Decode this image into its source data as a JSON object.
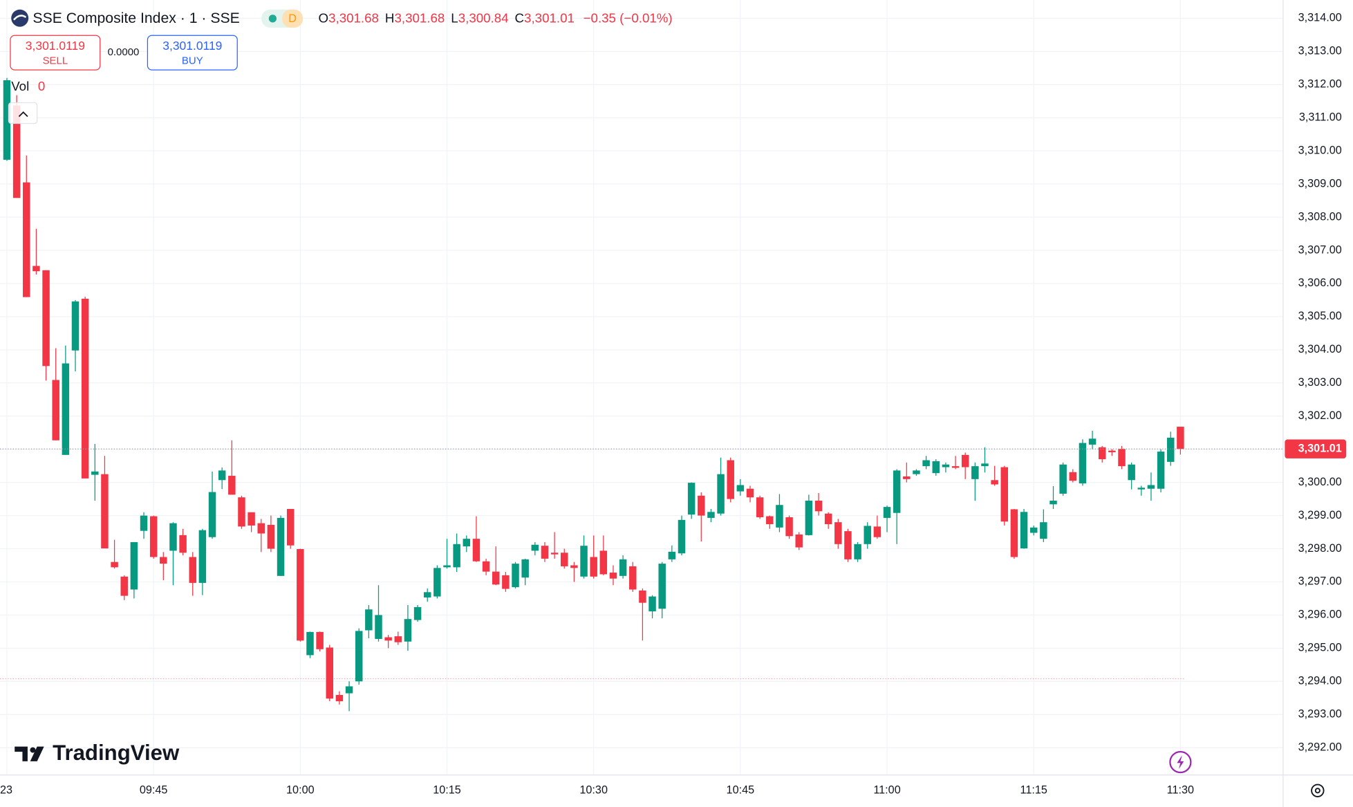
{
  "chart_data": {
    "type": "candlestick",
    "title": "SSE Composite Index · 1 · SSE",
    "interval_badge": "D",
    "legend": {
      "items": [
        {
          "key": "O",
          "value": "3,301.68"
        },
        {
          "key": "H",
          "value": "3,301.68"
        },
        {
          "key": "L",
          "value": "3,300.84"
        },
        {
          "key": "C",
          "value": "3,301.01"
        }
      ],
      "change": "−0.35 (−0.01%)"
    },
    "trade": {
      "sell_price": "3,301.0119",
      "sell": "SELL",
      "spread": "0.0000",
      "buy_price": "3,301.0119",
      "buy": "BUY"
    },
    "volume": {
      "label": "Vol",
      "value": "0"
    },
    "brand": "TradingView",
    "up_color": "#089981",
    "down_color": "#f23645",
    "grid": true,
    "categories": [
      "23",
      null,
      null,
      null,
      null,
      null,
      null,
      null,
      null,
      null,
      null,
      null,
      null,
      null,
      null,
      "09:45",
      null,
      null,
      null,
      null,
      null,
      null,
      null,
      null,
      null,
      null,
      null,
      null,
      null,
      null,
      "10:00",
      null,
      null,
      null,
      null,
      null,
      null,
      null,
      null,
      null,
      null,
      null,
      null,
      null,
      null,
      "10:15",
      null,
      null,
      null,
      null,
      null,
      null,
      null,
      null,
      null,
      null,
      null,
      null,
      null,
      null,
      "10:30",
      null,
      null,
      null,
      null,
      null,
      null,
      null,
      null,
      null,
      null,
      null,
      null,
      null,
      null,
      "10:45",
      null,
      null,
      null,
      null,
      null,
      null,
      null,
      null,
      null,
      null,
      null,
      null,
      null,
      null,
      "11:00",
      null,
      null,
      null,
      null,
      null,
      null,
      null,
      null,
      null,
      null,
      null,
      null,
      null,
      null,
      "11:15",
      null,
      null,
      null,
      null,
      null,
      null,
      null,
      null,
      null,
      null,
      null,
      null,
      null,
      null,
      "11:30"
    ],
    "open": [
      3309.73,
      3311.37,
      3309.05,
      3306.53,
      3306.4,
      3303.09,
      3300.83,
      3303.98,
      3305.54,
      3300.23,
      3300.25,
      3297.6,
      3297.16,
      3296.77,
      3298.54,
      3298.98,
      3297.75,
      3297.94,
      3298.41,
      3297.75,
      3296.97,
      3298.35,
      3300.07,
      3300.2,
      3299.55,
      3299.1,
      3298.77,
      3298.72,
      3297.18,
      3299.2,
      3297.99,
      3294.79,
      3295.49,
      3295.02,
      3293.59,
      3293.64,
      3294.0,
      3295.54,
      3295.28,
      3295.33,
      3295.36,
      3295.2,
      3295.85,
      3296.53,
      3296.56,
      3297.44,
      3297.44,
      3298.07,
      3298.3,
      3297.62,
      3297.31,
      3297.2,
      3296.84,
      3297.13,
      3297.94,
      3298.09,
      3297.88,
      3297.88,
      3297.5,
      3297.16,
      3297.75,
      3297.94,
      3297.28,
      3297.18,
      3297.47,
      3296.74,
      3296.11,
      3296.19,
      3297.68,
      3297.86,
      3299.03,
      3299.6,
      3298.93,
      3299.06,
      3300.67,
      3299.73,
      3299.81,
      3299.55,
      3298.98,
      3298.64,
      3298.95,
      3298.43,
      3298.41,
      3299.45,
      3299.06,
      3298.8,
      3298.53,
      3297.68,
      3298.14,
      3298.67,
      3298.93,
      3299.08,
      3300.18,
      3300.25,
      3300.49,
      3300.28,
      3300.46,
      3300.49,
      3300.83,
      3300.1,
      3300.49,
      3300.07,
      3300.46,
      3299.19,
      3298.01,
      3298.48,
      3298.3,
      3299.34,
      3299.66,
      3300.31,
      3299.97,
      3301.14,
      3301.06,
      3300.96,
      3301.01,
      3300.07,
      3299.79,
      3299.81,
      3299.81,
      3300.62,
      3301.68
    ],
    "high": [
      3312.2,
      3311.68,
      3309.86,
      3307.65,
      3306.4,
      3304.05,
      3304.13,
      3305.5,
      3305.6,
      3301.16,
      3300.8,
      3298.27,
      3297.2,
      3298.2,
      3299.1,
      3299.0,
      3297.9,
      3298.8,
      3298.6,
      3297.9,
      3298.6,
      3300.33,
      3300.45,
      3301.27,
      3299.6,
      3299.1,
      3298.9,
      3299.0,
      3299.0,
      3299.2,
      3298.0,
      3295.5,
      3295.5,
      3295.1,
      3293.7,
      3294.0,
      3295.6,
      3296.3,
      3296.9,
      3295.4,
      3295.5,
      3296.3,
      3296.3,
      3296.8,
      3297.5,
      3298.3,
      3298.46,
      3298.4,
      3298.98,
      3297.7,
      3298.07,
      3297.3,
      3297.6,
      3297.7,
      3298.2,
      3298.2,
      3298.5,
      3298.0,
      3297.6,
      3298.4,
      3298.4,
      3298.4,
      3297.5,
      3297.8,
      3297.6,
      3296.8,
      3296.6,
      3297.6,
      3298.1,
      3299.0,
      3300.0,
      3299.7,
      3299.2,
      3300.75,
      3300.75,
      3300.1,
      3299.9,
      3299.6,
      3299.0,
      3299.65,
      3299.0,
      3298.5,
      3299.63,
      3299.68,
      3299.1,
      3298.9,
      3298.6,
      3298.2,
      3298.8,
      3299.0,
      3299.3,
      3300.4,
      3300.6,
      3300.4,
      3300.8,
      3300.7,
      3300.6,
      3300.8,
      3300.9,
      3300.6,
      3301.06,
      3300.5,
      3300.5,
      3299.2,
      3299.2,
      3298.7,
      3299.19,
      3299.89,
      3300.6,
      3300.4,
      3301.3,
      3301.56,
      3301.1,
      3301.0,
      3301.1,
      3300.6,
      3299.9,
      3300.3,
      3301.0,
      3301.53,
      3301.68
    ],
    "low": [
      3309.7,
      3308.58,
      3305.59,
      3306.27,
      3303.07,
      3301.27,
      3300.83,
      3303.35,
      3300.12,
      3299.45,
      3298.01,
      3297.4,
      3296.45,
      3296.5,
      3298.3,
      3297.7,
      3297.05,
      3296.9,
      3297.8,
      3296.58,
      3296.6,
      3298.3,
      3299.8,
      3299.63,
      3298.6,
      3298.5,
      3297.9,
      3297.9,
      3297.18,
      3298.0,
      3295.2,
      3294.7,
      3294.9,
      3293.4,
      3293.3,
      3293.1,
      3293.9,
      3295.3,
      3295.2,
      3295.0,
      3295.1,
      3294.92,
      3295.8,
      3296.4,
      3296.5,
      3297.4,
      3297.3,
      3297.9,
      3297.6,
      3297.2,
      3296.9,
      3296.7,
      3296.8,
      3296.9,
      3297.8,
      3297.6,
      3297.7,
      3297.4,
      3297.0,
      3297.1,
      3297.1,
      3297.2,
      3296.9,
      3297.1,
      3296.7,
      3295.23,
      3295.9,
      3295.9,
      3297.6,
      3297.8,
      3298.9,
      3298.22,
      3298.8,
      3299.0,
      3299.4,
      3299.6,
      3299.4,
      3298.9,
      3298.6,
      3298.5,
      3298.3,
      3297.96,
      3298.4,
      3299.0,
      3298.6,
      3298.0,
      3297.6,
      3297.6,
      3298.0,
      3298.3,
      3298.5,
      3298.14,
      3300.0,
      3300.2,
      3300.4,
      3300.2,
      3300.3,
      3300.4,
      3300.1,
      3299.45,
      3300.3,
      3299.9,
      3298.7,
      3297.7,
      3298.0,
      3298.4,
      3298.2,
      3299.2,
      3299.6,
      3300.0,
      3299.9,
      3301.0,
      3300.6,
      3300.8,
      3300.4,
      3299.79,
      3299.6,
      3299.45,
      3299.7,
      3300.5,
      3300.84
    ],
    "close": [
      3312.13,
      3308.58,
      3305.59,
      3306.37,
      3303.51,
      3301.27,
      3303.59,
      3305.46,
      3300.12,
      3300.33,
      3298.01,
      3297.44,
      3296.58,
      3298.2,
      3299.0,
      3297.75,
      3297.55,
      3298.77,
      3297.88,
      3296.97,
      3298.56,
      3299.71,
      3300.36,
      3299.63,
      3298.67,
      3298.7,
      3298.46,
      3298.0,
      3298.93,
      3298.1,
      3295.23,
      3295.49,
      3294.97,
      3293.48,
      3293.4,
      3293.85,
      3295.52,
      3296.17,
      3296.0,
      3295.23,
      3295.18,
      3295.88,
      3296.24,
      3296.69,
      3297.42,
      3297.5,
      3298.14,
      3298.3,
      3297.62,
      3297.31,
      3296.92,
      3296.79,
      3297.55,
      3297.68,
      3298.12,
      3297.7,
      3297.83,
      3297.47,
      3297.42,
      3298.09,
      3297.16,
      3297.23,
      3297.1,
      3297.68,
      3296.77,
      3296.37,
      3296.56,
      3297.55,
      3297.91,
      3298.87,
      3299.99,
      3299.0,
      3299.11,
      3300.25,
      3299.5,
      3299.92,
      3299.55,
      3298.95,
      3298.74,
      3299.32,
      3298.38,
      3298.04,
      3299.45,
      3299.13,
      3298.74,
      3298.14,
      3297.68,
      3298.14,
      3298.69,
      3298.35,
      3299.26,
      3300.36,
      3300.1,
      3300.36,
      3300.67,
      3300.64,
      3300.54,
      3300.44,
      3300.46,
      3300.49,
      3300.57,
      3299.94,
      3298.82,
      3297.75,
      3299.11,
      3298.64,
      3298.8,
      3299.45,
      3300.54,
      3300.05,
      3301.19,
      3301.32,
      3300.7,
      3300.91,
      3300.49,
      3300.54,
      3299.84,
      3299.92,
      3300.93,
      3301.35,
      3301.01
    ],
    "last_price": {
      "value": 3301.01,
      "label": "3,301.01"
    },
    "reference_line": 3294.08,
    "ylim": [
      3291.2,
      3314.55
    ],
    "yticks": [
      {
        "value": 3292,
        "label": "3,292.00"
      },
      {
        "value": 3293,
        "label": "3,293.00"
      },
      {
        "value": 3294,
        "label": "3,294.00"
      },
      {
        "value": 3295,
        "label": "3,295.00"
      },
      {
        "value": 3296,
        "label": "3,296.00"
      },
      {
        "value": 3297,
        "label": "3,297.00"
      },
      {
        "value": 3298,
        "label": "3,298.00"
      },
      {
        "value": 3299,
        "label": "3,299.00"
      },
      {
        "value": 3300,
        "label": "3,300.00"
      },
      {
        "value": 3301,
        "label": "3,301.00"
      },
      {
        "value": 3302,
        "label": "3,302.00"
      },
      {
        "value": 3303,
        "label": "3,303.00"
      },
      {
        "value": 3304,
        "label": "3,304.00"
      },
      {
        "value": 3305,
        "label": "3,305.00"
      },
      {
        "value": 3306,
        "label": "3,306.00"
      },
      {
        "value": 3307,
        "label": "3,307.00"
      },
      {
        "value": 3308,
        "label": "3,308.00"
      },
      {
        "value": 3309,
        "label": "3,309.00"
      },
      {
        "value": 3310,
        "label": "3,310.00"
      },
      {
        "value": 3311,
        "label": "3,311.00"
      },
      {
        "value": 3312,
        "label": "3,312.00"
      },
      {
        "value": 3313,
        "label": "3,313.00"
      },
      {
        "value": 3314,
        "label": "3,314.00"
      }
    ]
  }
}
